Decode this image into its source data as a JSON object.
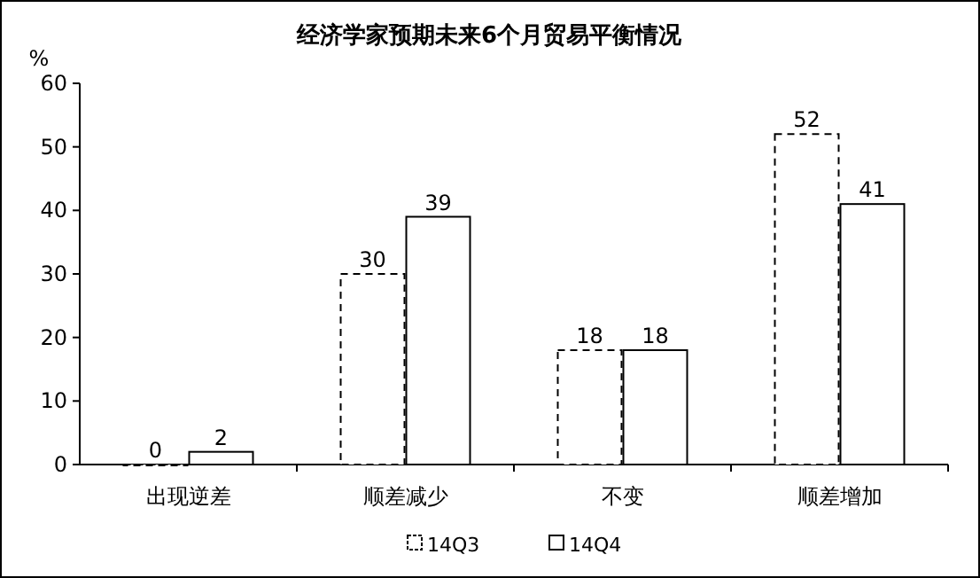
{
  "chart_data": {
    "type": "bar",
    "title": "经济学家预期未来6个月贸易平衡情况",
    "ylabel": "%",
    "categories": [
      "出现逆差",
      "顺差减少",
      "不变",
      "顺差增加"
    ],
    "series": [
      {
        "name": "14Q3",
        "color": "#000000",
        "line_style": "dashed",
        "values": [
          0,
          30,
          18,
          52
        ]
      },
      {
        "name": "14Q4",
        "color": "#000000",
        "line_style": "solid",
        "values": [
          2,
          39,
          18,
          41
        ]
      }
    ],
    "ylim": [
      0,
      60
    ],
    "yticks": [
      0,
      10,
      20,
      30,
      40,
      50,
      60
    ],
    "data_labels": true,
    "legend": "bottom",
    "grid": false
  }
}
